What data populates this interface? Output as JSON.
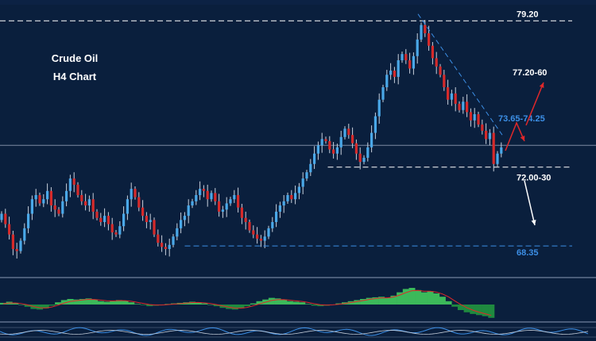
{
  "chart_data": {
    "type": "candlestick",
    "title_line1": "Crude Oil",
    "title_line2": "H4 Chart",
    "ylim": [
      66.9,
      79.9
    ],
    "levels": [
      {
        "label": "79.20",
        "value": 79.2,
        "color": "#ffffff",
        "style": "dashed",
        "start": 0
      },
      {
        "label": "72.00-30",
        "value": 72.15,
        "color": "#ffffff",
        "style": "dashed",
        "start": 0.55
      },
      {
        "label": "68.35",
        "value": 68.35,
        "color": "#3c8fe6",
        "style": "dashed",
        "start": 0.31
      }
    ],
    "annotations": [
      {
        "text": "77.20-60",
        "color": "#ffffff"
      },
      {
        "text": "73.65-74.25",
        "color": "#3c8fe6"
      }
    ],
    "reference_line": 73.2,
    "closes": [
      69.9,
      69.4,
      68.9,
      68.2,
      68.1,
      68.6,
      69.2,
      69.9,
      70.6,
      70.8,
      70.4,
      70.6,
      71.0,
      70.3,
      70.1,
      69.9,
      70.5,
      71.0,
      71.6,
      71.3,
      70.8,
      70.5,
      70.3,
      70.6,
      70.0,
      69.7,
      69.5,
      69.8,
      69.4,
      69.0,
      68.9,
      69.3,
      69.9,
      70.6,
      71.1,
      70.7,
      70.2,
      69.8,
      69.5,
      69.6,
      68.9,
      68.5,
      68.3,
      68.2,
      68.4,
      68.8,
      69.2,
      69.6,
      69.8,
      70.3,
      70.5,
      70.8,
      71.1,
      71.0,
      70.6,
      70.9,
      70.5,
      70.0,
      70.1,
      70.4,
      70.6,
      70.8,
      70.2,
      69.7,
      69.5,
      69.1,
      68.9,
      68.7,
      68.6,
      68.8,
      69.2,
      69.5,
      70.0,
      70.3,
      70.5,
      70.8,
      70.6,
      70.9,
      71.2,
      71.6,
      71.9,
      72.3,
      72.8,
      73.2,
      73.5,
      73.4,
      73.0,
      72.8,
      73.1,
      73.6,
      74.0,
      73.7,
      73.3,
      72.8,
      72.4,
      72.6,
      73.1,
      73.8,
      74.6,
      75.4,
      76.0,
      76.6,
      76.8,
      76.5,
      77.3,
      77.6,
      77.3,
      76.9,
      77.5,
      78.3,
      79.0,
      78.6,
      78.0,
      77.4,
      77.0,
      76.6,
      76.0,
      75.4,
      75.7,
      75.2,
      74.9,
      75.3,
      74.8,
      74.4,
      74.7,
      74.2,
      73.9,
      73.5,
      73.8,
      72.3,
      72.8,
      73.1
    ],
    "histogram": [
      0.3,
      0.5,
      0.3,
      0.0,
      -0.4,
      -0.8,
      -0.9,
      -0.7,
      -0.2,
      0.4,
      0.8,
      1.0,
      0.9,
      1.0,
      1.1,
      0.9,
      0.6,
      0.5,
      0.6,
      0.8,
      0.7,
      0.4,
      0.1,
      -0.1,
      -0.3,
      -0.2,
      -0.1,
      0.1,
      0.2,
      0.3,
      0.4,
      0.5,
      0.4,
      0.2,
      0.0,
      -0.3,
      -0.6,
      -0.8,
      -0.9,
      -0.7,
      -0.3,
      0.2,
      0.6,
      0.9,
      1.2,
      1.1,
      0.9,
      0.6,
      0.5,
      0.4,
      0.1,
      -0.2,
      -0.3,
      -0.2,
      0.0,
      0.2,
      0.4,
      0.6,
      0.8,
      1.0,
      1.2,
      1.3,
      1.4,
      1.2,
      1.6,
      2.2,
      2.8,
      3.0,
      2.6,
      2.2,
      2.4,
      2.0,
      1.4,
      0.6,
      -0.4,
      -1.0,
      -1.4,
      -1.7,
      -1.9,
      -2.1,
      -2.4
    ]
  }
}
